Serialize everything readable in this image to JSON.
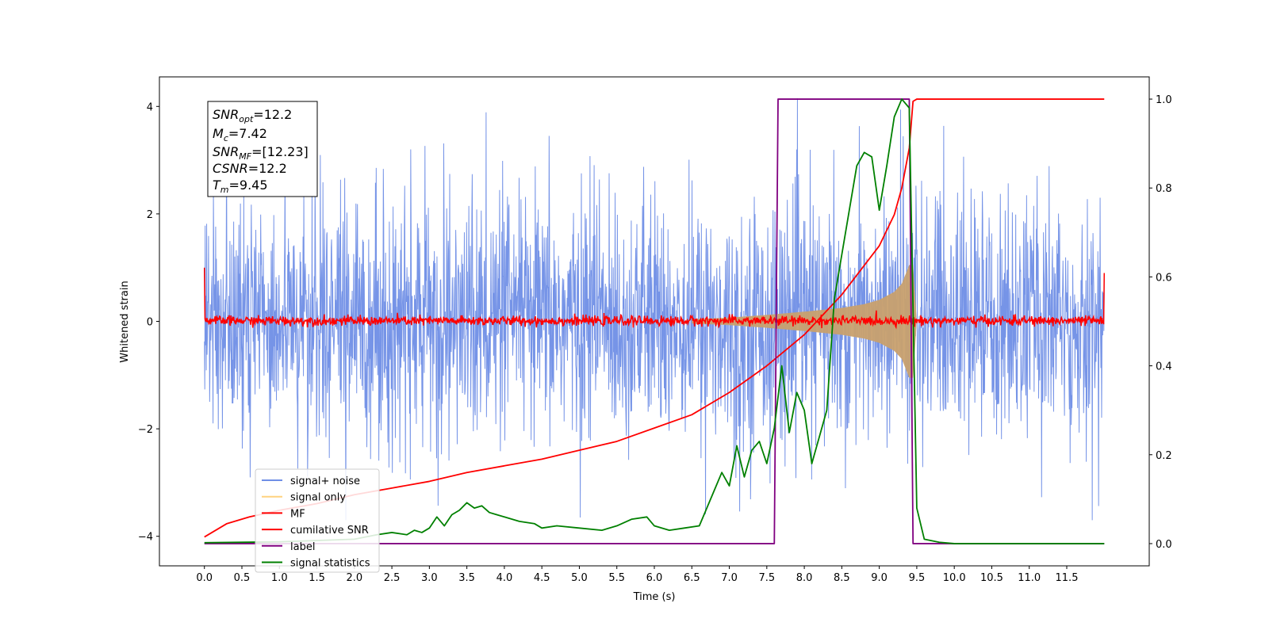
{
  "chart_data": {
    "type": "line",
    "xlabel": "Time (s)",
    "ylabel": "Whitened strain",
    "xlim": [
      -0.6,
      12.6
    ],
    "ylim_left": [
      -4.55,
      4.55
    ],
    "ylim_right": [
      -0.05,
      1.05
    ],
    "x_ticks": [
      0.0,
      0.5,
      1.0,
      1.5,
      2.0,
      2.5,
      3.0,
      3.5,
      4.0,
      4.5,
      5.0,
      5.5,
      6.0,
      6.5,
      7.0,
      7.5,
      8.0,
      8.5,
      9.0,
      9.5,
      10.0,
      10.5,
      11.0,
      11.5
    ],
    "x_tick_labels": [
      "0.0",
      "0.5",
      "1.0",
      "1.5",
      "2.0",
      "2.5",
      "3.0",
      "3.5",
      "4.0",
      "4.5",
      "5.0",
      "5.5",
      "6.0",
      "6.5",
      "7.0",
      "7.5",
      "8.0",
      "8.5",
      "9.0",
      "9.5",
      "10.0",
      "10.5",
      "11.0",
      "11.5"
    ],
    "y_ticks_left": [
      -4,
      -2,
      0,
      2,
      4
    ],
    "y_tick_labels_left": [
      "−4",
      "−2",
      "0",
      "2",
      "4"
    ],
    "y_ticks_right": [
      0.0,
      0.2,
      0.4,
      0.6,
      0.8,
      1.0
    ],
    "y_tick_labels_right": [
      "0.0",
      "0.2",
      "0.4",
      "0.6",
      "0.8",
      "1.0"
    ],
    "legend_position": "lower-left",
    "grid": false,
    "info_box": {
      "snr_opt": "=12.2",
      "mc": "=7.42",
      "snr_mf": "=[12.23]",
      "csnr": "=12.2",
      "tm": "=9.45"
    },
    "series": [
      {
        "name": "signal+ noise",
        "axis": "left",
        "color": "#6f8ee6",
        "kind": "noise-band",
        "t_range": [
          0.0,
          12.0
        ],
        "typical_min": -2.0,
        "typical_max": 2.0,
        "peak_max": 4.15,
        "peak_min": -3.7
      },
      {
        "name": "signal only",
        "axis": "left",
        "color": "#c8a06e",
        "kind": "chirp-envelope",
        "t": [
          6.5,
          7.0,
          7.5,
          8.0,
          8.5,
          8.8,
          9.0,
          9.2,
          9.3,
          9.4,
          9.45,
          9.5
        ],
        "amplitude": [
          0.04,
          0.07,
          0.12,
          0.18,
          0.25,
          0.32,
          0.4,
          0.55,
          0.7,
          1.05,
          1.05,
          0.0
        ]
      },
      {
        "name": "MF",
        "axis": "left",
        "color": "#ff0000",
        "kind": "noise-band",
        "t_range": [
          0.0,
          12.0
        ],
        "typical_min": -0.1,
        "typical_max": 0.12,
        "edge_values": [
          1.0,
          0.9
        ]
      },
      {
        "name": "cumilative SNR",
        "axis": "right",
        "color": "#ff0000",
        "x": [
          0.0,
          0.3,
          0.6,
          1.0,
          1.5,
          2.0,
          2.5,
          3.0,
          3.5,
          4.0,
          4.5,
          5.0,
          5.5,
          6.0,
          6.5,
          7.0,
          7.5,
          8.0,
          8.5,
          9.0,
          9.2,
          9.3,
          9.4,
          9.45,
          9.5,
          10.0,
          11.0,
          12.0
        ],
        "y": [
          0.015,
          0.045,
          0.06,
          0.075,
          0.09,
          0.11,
          0.125,
          0.14,
          0.16,
          0.175,
          0.19,
          0.21,
          0.23,
          0.26,
          0.29,
          0.34,
          0.4,
          0.47,
          0.56,
          0.67,
          0.74,
          0.8,
          0.89,
          0.995,
          1.0,
          1.0,
          1.0,
          1.0
        ]
      },
      {
        "name": "label",
        "axis": "right",
        "color": "#800080",
        "x": [
          0.0,
          7.6,
          7.65,
          9.4,
          9.45,
          12.0
        ],
        "y": [
          0.0,
          0.0,
          1.0,
          1.0,
          0.0,
          0.0
        ]
      },
      {
        "name": "signal statistics",
        "axis": "right",
        "color": "#008000",
        "x": [
          0.0,
          1.0,
          2.0,
          2.3,
          2.5,
          2.7,
          2.8,
          2.9,
          3.0,
          3.1,
          3.2,
          3.3,
          3.4,
          3.5,
          3.6,
          3.7,
          3.8,
          3.9,
          4.0,
          4.2,
          4.4,
          4.5,
          4.7,
          5.0,
          5.3,
          5.5,
          5.7,
          5.9,
          6.0,
          6.2,
          6.4,
          6.6,
          6.8,
          6.9,
          7.0,
          7.1,
          7.2,
          7.3,
          7.4,
          7.5,
          7.6,
          7.7,
          7.8,
          7.9,
          8.0,
          8.1,
          8.2,
          8.3,
          8.4,
          8.5,
          8.6,
          8.7,
          8.8,
          8.9,
          9.0,
          9.1,
          9.2,
          9.3,
          9.4,
          9.5,
          9.6,
          9.8,
          10.0,
          12.0
        ],
        "y": [
          0.002,
          0.004,
          0.01,
          0.02,
          0.025,
          0.02,
          0.03,
          0.025,
          0.035,
          0.06,
          0.04,
          0.065,
          0.075,
          0.092,
          0.08,
          0.085,
          0.07,
          0.065,
          0.06,
          0.05,
          0.045,
          0.035,
          0.04,
          0.035,
          0.03,
          0.04,
          0.055,
          0.06,
          0.04,
          0.03,
          0.035,
          0.04,
          0.12,
          0.16,
          0.13,
          0.22,
          0.15,
          0.21,
          0.23,
          0.18,
          0.26,
          0.4,
          0.25,
          0.34,
          0.3,
          0.18,
          0.24,
          0.3,
          0.55,
          0.65,
          0.75,
          0.85,
          0.88,
          0.87,
          0.75,
          0.85,
          0.96,
          1.0,
          0.98,
          0.08,
          0.01,
          0.003,
          0.0,
          0.0
        ]
      }
    ]
  }
}
